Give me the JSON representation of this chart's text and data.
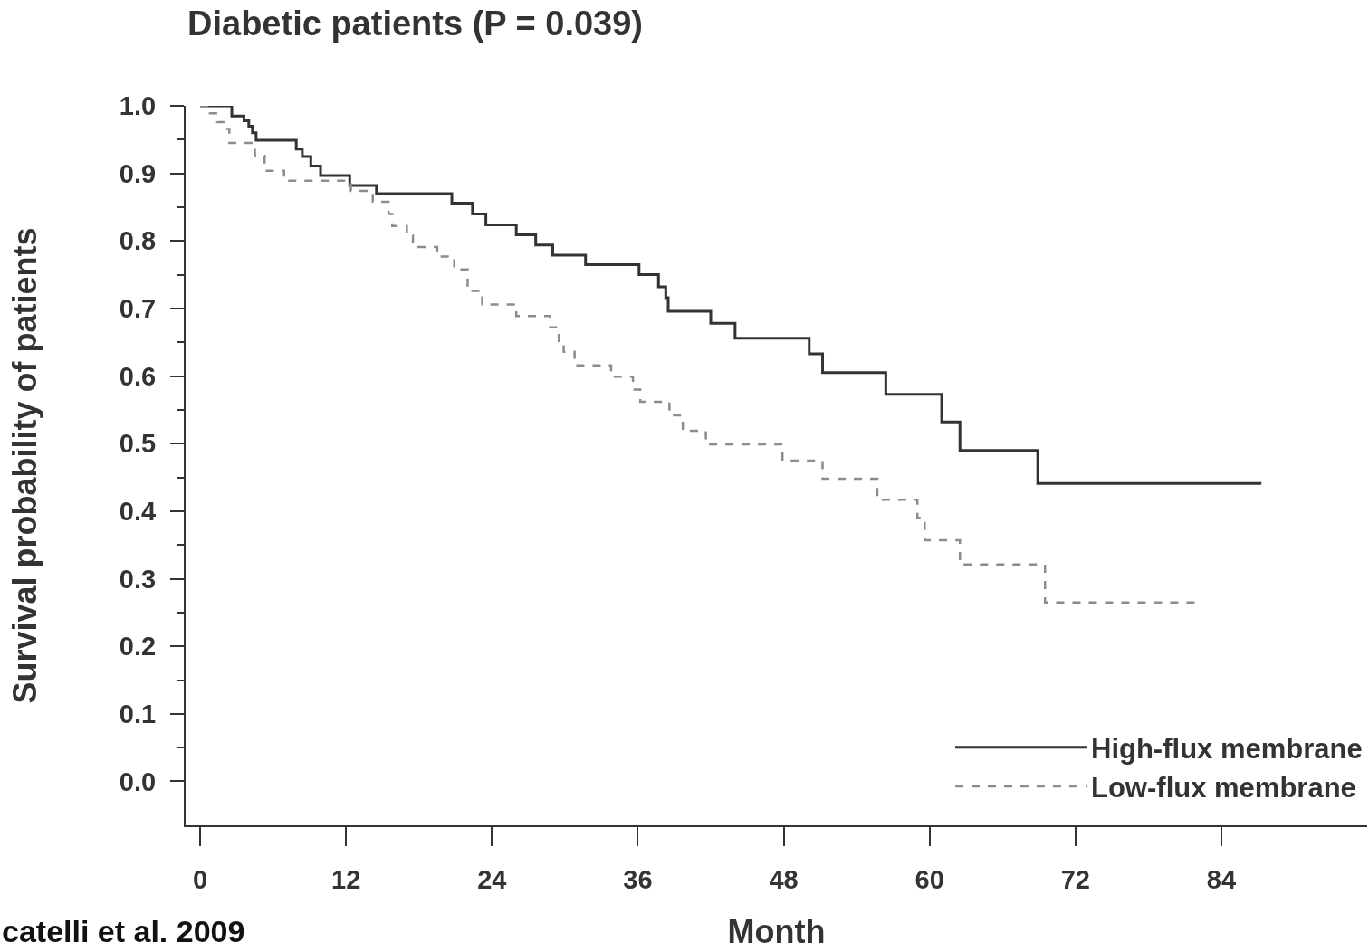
{
  "chart_data": {
    "type": "step",
    "title": "Diabetic patients (P = 0.039)",
    "xlabel": "Month",
    "ylabel": "Survival probability of patients",
    "annotations": [
      "catelli et al. 2009"
    ],
    "xlim": [
      -1.2,
      96
    ],
    "xticks": [
      0,
      12,
      24,
      36,
      48,
      60,
      72,
      84
    ],
    "ylim": [
      -0.065,
      1.0
    ],
    "yticks": [
      {
        "value": 0,
        "label": "0.0"
      },
      {
        "value": 0.05,
        "label": null
      },
      {
        "value": 0.1,
        "label": "0.1"
      },
      {
        "value": 0.15,
        "label": null
      },
      {
        "value": 0.2,
        "label": "0.2"
      },
      {
        "value": 0.25,
        "label": null
      },
      {
        "value": 0.3,
        "label": "0.3"
      },
      {
        "value": 0.35,
        "label": null
      },
      {
        "value": 0.4,
        "label": "0.4"
      },
      {
        "value": 0.45,
        "label": null
      },
      {
        "value": 0.5,
        "label": "0.5"
      },
      {
        "value": 0.55,
        "label": null
      },
      {
        "value": 0.6,
        "label": "0.6"
      },
      {
        "value": 0.65,
        "label": null
      },
      {
        "value": 0.7,
        "label": "0.7"
      },
      {
        "value": 0.75,
        "label": null
      },
      {
        "value": 0.8,
        "label": "0.8"
      },
      {
        "value": 0.85,
        "label": null
      },
      {
        "value": 0.9,
        "label": "0.9"
      },
      {
        "value": 0.95,
        "label": null
      },
      {
        "value": 1,
        "label": "1.0"
      }
    ],
    "legend": "bottom right",
    "series": [
      {
        "name": "High-flux membrane",
        "color": "#333333",
        "line_style": "solid",
        "x": [
          0,
          2.6,
          3.6,
          4.0,
          4.3,
          4.6,
          7.9,
          8.4,
          9.1,
          9.9,
          12.3,
          14.5,
          20.7,
          22.4,
          23.5,
          26.0,
          27.6,
          29.0,
          31.7,
          36.1,
          37.7,
          38.3,
          38.5,
          42.0,
          44.0,
          50.1,
          51.2,
          56.4,
          61.0,
          62.5,
          68.9,
          87.3
        ],
        "values": [
          1.0,
          0.985,
          0.978,
          0.97,
          0.96,
          0.949,
          0.936,
          0.925,
          0.911,
          0.897,
          0.882,
          0.87,
          0.856,
          0.84,
          0.824,
          0.809,
          0.794,
          0.779,
          0.765,
          0.75,
          0.732,
          0.716,
          0.696,
          0.678,
          0.656,
          0.633,
          0.605,
          0.573,
          0.532,
          0.49,
          0.441,
          0.441
        ]
      },
      {
        "name": "Low-flux membrane",
        "color": "#8c8c8c",
        "line_style": "dashed",
        "x": [
          0,
          0.8,
          1.4,
          2.1,
          2.4,
          4.5,
          5.3,
          6.9,
          12.4,
          14.2,
          15.5,
          15.8,
          17.0,
          17.5,
          19.5,
          20.9,
          22.0,
          23.2,
          26.0,
          28.8,
          29.5,
          29.9,
          30.8,
          33.8,
          35.6,
          36.2,
          38.6,
          39.7,
          41.6,
          47.9,
          51.2,
          55.7,
          59.0,
          59.6,
          62.5,
          69.5,
          82.1
        ],
        "values": [
          1.0,
          0.989,
          0.976,
          0.966,
          0.945,
          0.926,
          0.904,
          0.889,
          0.874,
          0.858,
          0.84,
          0.822,
          0.808,
          0.791,
          0.777,
          0.758,
          0.726,
          0.706,
          0.689,
          0.672,
          0.652,
          0.636,
          0.616,
          0.599,
          0.58,
          0.562,
          0.542,
          0.519,
          0.499,
          0.475,
          0.448,
          0.417,
          0.39,
          0.357,
          0.321,
          0.265,
          0.265
        ]
      }
    ]
  }
}
